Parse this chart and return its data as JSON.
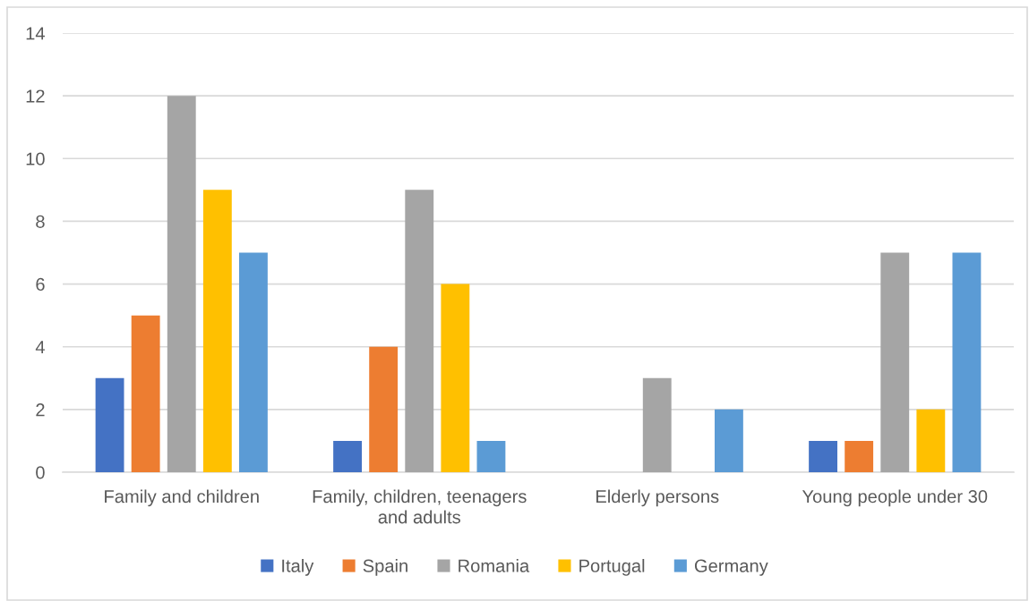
{
  "chart_data": {
    "type": "bar",
    "categories": [
      "Family and children",
      "Family, children, teenagers and adults",
      "Elderly persons",
      "Young people under 30"
    ],
    "series": [
      {
        "name": "Italy",
        "color": "#4472c4",
        "values": [
          3,
          1,
          null,
          1
        ]
      },
      {
        "name": "Spain",
        "color": "#ed7d31",
        "values": [
          5,
          4,
          null,
          1
        ]
      },
      {
        "name": "Romania",
        "color": "#a5a5a5",
        "values": [
          12,
          9,
          3,
          7
        ]
      },
      {
        "name": "Portugal",
        "color": "#ffc000",
        "values": [
          9,
          6,
          null,
          2
        ]
      },
      {
        "name": "Germany",
        "color": "#5b9bd5",
        "values": [
          7,
          1,
          2,
          7
        ]
      }
    ],
    "ylim": [
      0,
      14
    ],
    "yticks": [
      0,
      2,
      4,
      6,
      8,
      10,
      12,
      14
    ],
    "grid": "y",
    "legend": "bottom"
  }
}
